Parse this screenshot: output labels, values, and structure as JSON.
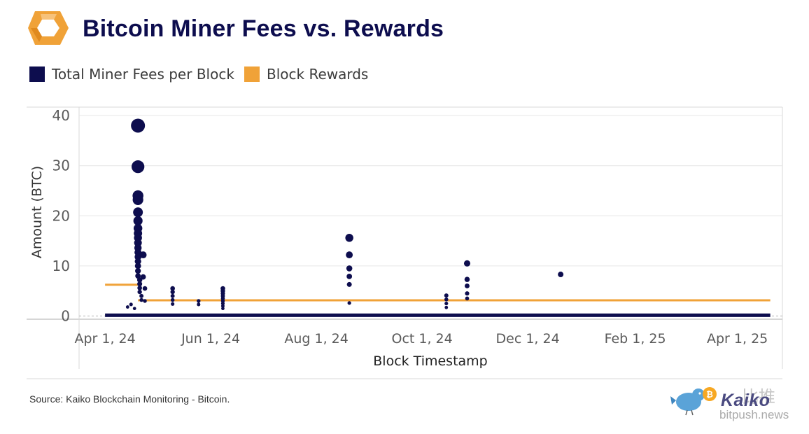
{
  "header": {
    "title": "Bitcoin Miner Fees vs. Rewards"
  },
  "legend": [
    {
      "label": "Total Miner Fees per Block",
      "color": "#0d0d4e"
    },
    {
      "label": "Block Rewards",
      "color": "#f0a238"
    }
  ],
  "footer": {
    "source": "Source: Kaiko Blockchain Monitoring - Bitcoin.",
    "brand": "Kaiko",
    "watermark_cn": "比推",
    "watermark_url": "bitpush.news"
  },
  "colors": {
    "fees": "#0d0d4e",
    "rewards": "#f0a238",
    "logo_orange": "#f0a238",
    "grid": "#e6e6e6"
  },
  "chart_data": {
    "type": "scatter",
    "xlabel": "Block Timestamp",
    "ylabel": "Amount (BTC)",
    "x_ticks": [
      "Apr 1, 24",
      "Jun 1, 24",
      "Aug 1, 24",
      "Oct 1, 24",
      "Dec 1, 24",
      "Feb 1, 25",
      "Apr 1, 25"
    ],
    "y_ticks": [
      0,
      10,
      20,
      30,
      40
    ],
    "xlim": [
      "2024-03-17",
      "2025-04-27"
    ],
    "ylim": [
      -0.5,
      41
    ],
    "grid": true,
    "legend_position": "top-left",
    "series": [
      {
        "name": "Total Miner Fees per Block",
        "kind": "scatter",
        "points": [
          [
            "2024-04-20",
            38.0
          ],
          [
            "2024-04-20",
            29.8
          ],
          [
            "2024-04-20",
            24.0
          ],
          [
            "2024-04-20",
            23.2
          ],
          [
            "2024-04-20",
            20.7
          ],
          [
            "2024-04-20",
            19.0
          ],
          [
            "2024-04-20",
            17.5
          ],
          [
            "2024-04-20",
            16.5
          ],
          [
            "2024-04-20",
            15.6
          ],
          [
            "2024-04-20",
            14.6
          ],
          [
            "2024-04-20",
            13.6
          ],
          [
            "2024-04-20",
            12.7
          ],
          [
            "2024-04-20",
            11.8
          ],
          [
            "2024-04-20",
            10.9
          ],
          [
            "2024-04-20",
            10.0
          ],
          [
            "2024-04-20",
            9.0
          ],
          [
            "2024-04-20",
            8.0
          ],
          [
            "2024-04-21",
            7.2
          ],
          [
            "2024-04-21",
            6.4
          ],
          [
            "2024-04-21",
            5.6
          ],
          [
            "2024-04-21",
            4.8
          ],
          [
            "2024-04-22",
            4.0
          ],
          [
            "2024-04-22",
            3.2
          ],
          [
            "2024-04-23",
            12.2
          ],
          [
            "2024-04-23",
            7.8
          ],
          [
            "2024-04-24",
            5.5
          ],
          [
            "2024-04-24",
            3.0
          ],
          [
            "2024-04-14",
            1.8
          ],
          [
            "2024-04-16",
            2.3
          ],
          [
            "2024-04-18",
            1.5
          ],
          [
            "2024-05-10",
            5.5
          ],
          [
            "2024-05-10",
            4.8
          ],
          [
            "2024-05-10",
            4.0
          ],
          [
            "2024-05-10",
            3.2
          ],
          [
            "2024-05-10",
            2.4
          ],
          [
            "2024-05-25",
            3.0
          ],
          [
            "2024-05-25",
            2.3
          ],
          [
            "2024-06-08",
            5.5
          ],
          [
            "2024-06-08",
            5.0
          ],
          [
            "2024-06-08",
            4.5
          ],
          [
            "2024-06-08",
            4.0
          ],
          [
            "2024-06-08",
            3.5
          ],
          [
            "2024-06-08",
            3.0
          ],
          [
            "2024-06-08",
            2.5
          ],
          [
            "2024-06-08",
            2.0
          ],
          [
            "2024-06-08",
            1.5
          ],
          [
            "2024-08-20",
            15.6
          ],
          [
            "2024-08-20",
            12.2
          ],
          [
            "2024-08-20",
            9.5
          ],
          [
            "2024-08-20",
            7.9
          ],
          [
            "2024-08-20",
            6.3
          ],
          [
            "2024-08-20",
            2.6
          ],
          [
            "2024-10-15",
            4.1
          ],
          [
            "2024-10-15",
            3.3
          ],
          [
            "2024-10-15",
            2.5
          ],
          [
            "2024-10-15",
            1.7
          ],
          [
            "2024-10-27",
            10.5
          ],
          [
            "2024-10-27",
            7.3
          ],
          [
            "2024-10-27",
            6.0
          ],
          [
            "2024-10-27",
            4.5
          ],
          [
            "2024-10-27",
            3.5
          ],
          [
            "2024-12-20",
            8.3
          ]
        ]
      },
      {
        "name": "Block Rewards",
        "kind": "step",
        "segments": [
          {
            "x_start": "2024-04-01",
            "x_end": "2024-04-20",
            "y": 6.25
          },
          {
            "x_start": "2024-04-20",
            "x_end": "2025-04-20",
            "y": 3.125
          }
        ]
      }
    ]
  }
}
